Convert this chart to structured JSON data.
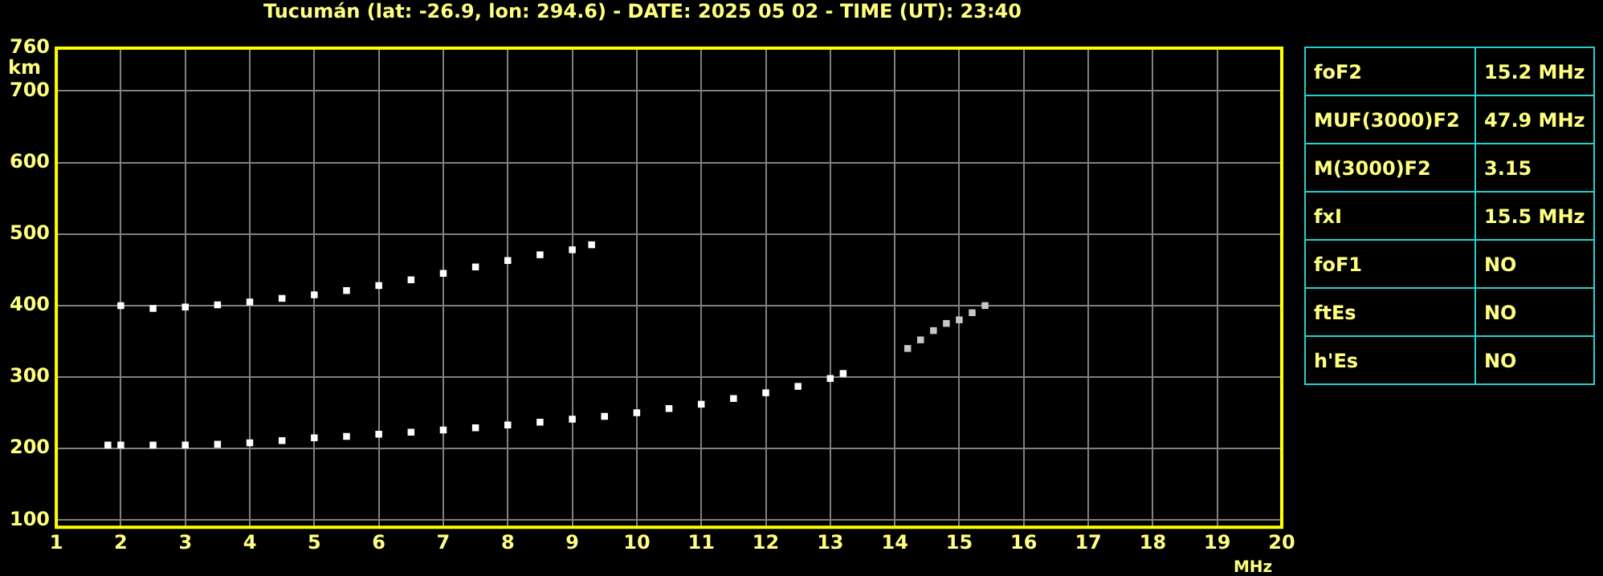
{
  "chart_data": {
    "type": "scatter",
    "title": "Tucumán (lat: -26.9, lon: 294.6) - DATE: 2025 05 02 - TIME (UT): 23:40",
    "xlabel": "MHz",
    "ylabel": "km",
    "xlim": [
      1,
      20
    ],
    "xticks": [
      1,
      2,
      3,
      4,
      5,
      6,
      7,
      8,
      9,
      10,
      11,
      12,
      13,
      14,
      15,
      16,
      17,
      18,
      19,
      20
    ],
    "ylim": [
      90,
      760
    ],
    "yticks": [
      100,
      200,
      300,
      400,
      500,
      600,
      700,
      760
    ],
    "grid": true,
    "legend": false,
    "marker": "square",
    "series": [
      {
        "color": "#ffffff",
        "x": [
          1.8,
          2,
          2.5,
          3,
          3.5,
          4,
          4.5,
          5,
          5.5,
          6,
          6.5,
          7,
          7.5,
          8,
          8.5,
          9,
          9.5,
          10,
          10.5,
          11,
          11.5,
          12,
          12.5,
          13,
          13.2
        ],
        "values": [
          205,
          205,
          205,
          205,
          206,
          208,
          211,
          215,
          217,
          220,
          223,
          226,
          229,
          233,
          237,
          241,
          245,
          250,
          256,
          262,
          270,
          278,
          287,
          298,
          305
        ]
      },
      {
        "color": "#ffffff",
        "x": [
          2,
          2.5,
          3,
          3.5,
          4,
          4.5,
          5,
          5.5,
          6,
          6.5,
          7,
          7.5,
          8,
          8.5,
          9,
          9.3
        ],
        "values": [
          400,
          396,
          398,
          401,
          405,
          410,
          415,
          421,
          428,
          436,
          445,
          454,
          463,
          471,
          478,
          485
        ]
      },
      {
        "color": "#c8c8c8",
        "x": [
          14.2,
          14.4,
          14.6,
          14.8,
          15.0,
          15.2,
          15.4
        ],
        "values": [
          340,
          352,
          365,
          375,
          380,
          390,
          400
        ]
      }
    ],
    "annotations": [
      "foF2",
      "15.2 MHz",
      "MUF(3000)F2",
      "47.9 MHz",
      "M(3000)F2",
      "3.15",
      "fxI",
      "15.5 MHz",
      "foF1",
      "NO",
      "ftEs",
      "NO",
      "h'Es",
      "NO"
    ]
  }
}
